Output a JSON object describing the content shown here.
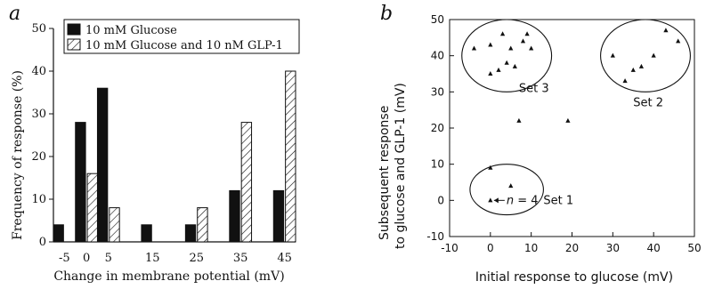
{
  "chart_data": [
    {
      "panel": "a",
      "type": "bar",
      "categories": [
        "-5",
        "0",
        "5",
        "15",
        "25",
        "35",
        "45"
      ],
      "bar_x": [
        -5,
        0,
        5,
        10,
        15,
        20,
        25,
        30,
        35,
        40,
        45
      ],
      "xlabel": "Change in membrane potential (mV)",
      "ylabel": "Frequency of response (%)",
      "ylim": [
        0,
        50
      ],
      "yticks": [
        0,
        10,
        20,
        30,
        40,
        50
      ],
      "legend_position": "top-right",
      "series": [
        {
          "name": "10 mM Glucose",
          "fill": "#111111",
          "values": [
            4,
            28,
            36,
            4,
            0,
            4,
            12,
            12
          ],
          "x": [
            -5,
            0,
            5,
            15,
            20,
            25,
            35,
            45
          ]
        },
        {
          "name": "10 mM Glucose and 10 nM GLP-1",
          "fill": "hatch",
          "values": [
            16,
            8,
            0,
            8,
            28,
            40
          ],
          "x": [
            0,
            5,
            20,
            25,
            35,
            45
          ]
        }
      ]
    },
    {
      "panel": "b",
      "type": "scatter",
      "xlabel": "Initial response to glucose (mV)",
      "ylabel": "Subsequent response to glucose and GLP-1 (mV)",
      "ylabel_lines": [
        "Subsequent response",
        "to glucose and GLP-1 (mV)"
      ],
      "xlim": [
        -10,
        50
      ],
      "ylim": [
        -10,
        50
      ],
      "xticks": [
        -10,
        0,
        10,
        20,
        30,
        40,
        50
      ],
      "yticks": [
        -10,
        0,
        10,
        20,
        30,
        40,
        50
      ],
      "points": [
        {
          "x": -4,
          "y": 42
        },
        {
          "x": 0,
          "y": 35
        },
        {
          "x": 0,
          "y": 43
        },
        {
          "x": 2,
          "y": 36
        },
        {
          "x": 3,
          "y": 46
        },
        {
          "x": 4,
          "y": 38
        },
        {
          "x": 5,
          "y": 42
        },
        {
          "x": 6,
          "y": 37
        },
        {
          "x": 8,
          "y": 44
        },
        {
          "x": 9,
          "y": 46
        },
        {
          "x": 10,
          "y": 42
        },
        {
          "x": 30,
          "y": 40
        },
        {
          "x": 33,
          "y": 33
        },
        {
          "x": 35,
          "y": 36
        },
        {
          "x": 37,
          "y": 37
        },
        {
          "x": 40,
          "y": 40
        },
        {
          "x": 43,
          "y": 47
        },
        {
          "x": 46,
          "y": 44
        },
        {
          "x": 7,
          "y": 22
        },
        {
          "x": 19,
          "y": 22
        },
        {
          "x": 0,
          "y": 9
        },
        {
          "x": 5,
          "y": 4
        },
        {
          "x": 0,
          "y": 0
        }
      ],
      "sets": [
        {
          "label": "Set 3",
          "cx": 4,
          "cy": 40,
          "rx": 11,
          "ry": 10
        },
        {
          "label": "Set 2",
          "cx": 38,
          "cy": 40,
          "rx": 11,
          "ry": 10
        },
        {
          "label": "Set 1",
          "cx": 4,
          "cy": 3,
          "rx": 9,
          "ry": 7
        }
      ],
      "set_label_pos": [
        {
          "x": 7,
          "y": 30
        },
        {
          "x": 35,
          "y": 26
        },
        {
          "x": 13,
          "y": -1
        }
      ],
      "annotation": {
        "text": "n = 4",
        "x": 0,
        "y": 0
      }
    }
  ],
  "labels": {
    "panel_a_letter": "a",
    "panel_b_letter": "b",
    "n_prefix": "n",
    "n_value": " = 4"
  }
}
